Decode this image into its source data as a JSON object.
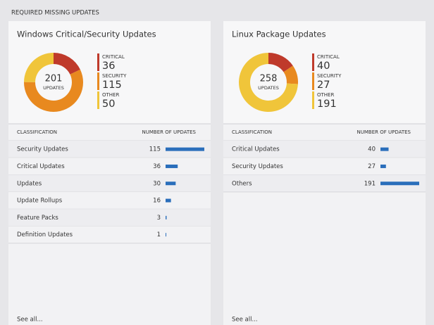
{
  "header": {
    "title": "REQUIRED MISSING UPDATES"
  },
  "bar_color": "#2a6ebb",
  "panels": [
    {
      "title": "Windows Critical/Security Updates",
      "donut": {
        "total": 201,
        "total_label": "UPDATES",
        "segments": [
          {
            "name": "CRITICAL",
            "value": 36,
            "color": "#bf3a2b"
          },
          {
            "name": "SECURITY",
            "value": 115,
            "color": "#e8891f"
          },
          {
            "name": "OTHER",
            "value": 50,
            "color": "#f0c53a"
          }
        ]
      },
      "table": {
        "columns": [
          "CLASSIFICATION",
          "NUMBER OF UPDATES"
        ],
        "rows": [
          {
            "label": "Security Updates",
            "value": 115
          },
          {
            "label": "Critical Updates",
            "value": 36
          },
          {
            "label": "Updates",
            "value": 30
          },
          {
            "label": "Update Rollups",
            "value": 16
          },
          {
            "label": "Feature Packs",
            "value": 3
          },
          {
            "label": "Definition Updates",
            "value": 1
          }
        ]
      },
      "link": "See all..."
    },
    {
      "title": "Linux Package Updates",
      "donut": {
        "total": 258,
        "total_label": "UPDATES",
        "segments": [
          {
            "name": "CRITICAL",
            "value": 40,
            "color": "#bf3a2b"
          },
          {
            "name": "SECURITY",
            "value": 27,
            "color": "#e8891f"
          },
          {
            "name": "OTHER",
            "value": 191,
            "color": "#f0c53a"
          }
        ]
      },
      "table": {
        "columns": [
          "CLASSIFICATION",
          "NUMBER OF UPDATES"
        ],
        "rows": [
          {
            "label": "Critical Updates",
            "value": 40
          },
          {
            "label": "Security Updates",
            "value": 27
          },
          {
            "label": "Others",
            "value": 191
          }
        ]
      },
      "link": "See all..."
    }
  ]
}
